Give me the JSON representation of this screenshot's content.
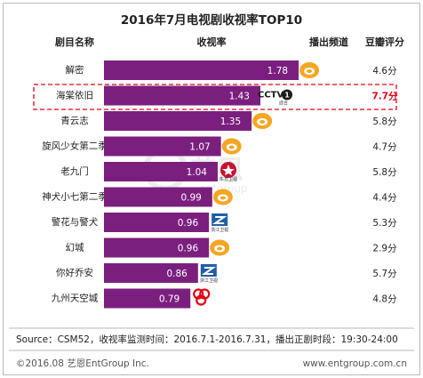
{
  "chart_data": {
    "type": "bar",
    "orientation": "horizontal",
    "title": "2016年7月电视剧收视率TOP10",
    "columns": {
      "name": "剧目名称",
      "rating": "收视率",
      "channel": "播出频道",
      "score": "豆瓣评分"
    },
    "categories": [
      "解密",
      "海棠依旧",
      "青云志",
      "旋风少女第二季",
      "老九门",
      "神犬小七第二季",
      "警花与警犬",
      "幻城",
      "你好乔安",
      "九州天空城"
    ],
    "values": [
      1.78,
      1.43,
      1.35,
      1.07,
      1.04,
      0.99,
      0.96,
      0.96,
      0.86,
      0.79
    ],
    "value_labels": [
      "1.78",
      "1.43",
      "1.35",
      "1.07",
      "1.04",
      "0.99",
      "0.96",
      "0.96",
      "0.86",
      "0.79"
    ],
    "scores": [
      "4.6分",
      "7.7分",
      "5.8分",
      "4.7分",
      "5.8分",
      "4.4分",
      "5.3分",
      "2.9分",
      "5.7分",
      "4.8分"
    ],
    "channels": [
      "hunan-tv-logo",
      "cctv1-logo",
      "hunan-tv-logo",
      "hunan-tv-logo",
      "dragon-tv-logo",
      "hunan-tv-logo",
      "zhejiang-tv-logo",
      "hunan-tv-logo",
      "zhejiang-tv-logo",
      "jiangsu-tv-logo"
    ],
    "channel_captions": [
      "",
      "综合",
      "",
      "",
      "东方卫视",
      "",
      "浙江卫视",
      "",
      "浙江卫视",
      ""
    ],
    "cctv_text": "CCTV",
    "cctv_num": "1",
    "highlight_index": 1,
    "xlim": [
      0,
      1.95
    ],
    "source": "Source：CSM52，收视率监测时间：2016.7.1-2016.7.31，播出正剧时段：19:30-24:00",
    "watermark": "艺恩",
    "watermark_sub": "entgroup"
  },
  "footer": {
    "copyright": "©2016.08 艺恩EntGroup Inc.",
    "url": "www.entgroup.com.cn"
  },
  "colors": {
    "bar": "#7b1f7f",
    "highlight": "#e60012",
    "hunan": "#f5a623",
    "zhejiang": "#1f5fa8",
    "dragon": "#c8102e",
    "jiangsu": "#e60012"
  }
}
